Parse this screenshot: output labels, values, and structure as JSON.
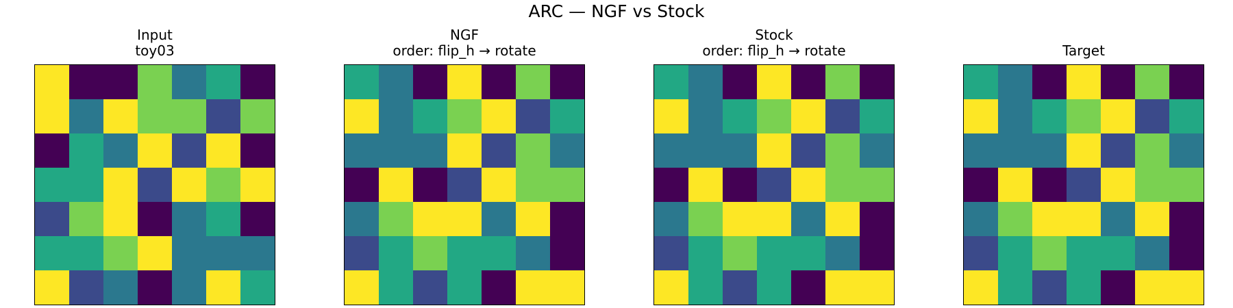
{
  "title": "ARC — NGF vs Stock",
  "colors": {
    "0": "#440154",
    "1": "#3b4a8a",
    "2": "#2b788e",
    "3": "#22a884",
    "4": "#7ad151",
    "5": "#fde725"
  },
  "chart_data": {
    "type": "heatmap",
    "color_scale": "viridis",
    "panels": [
      {
        "title": "Input",
        "subtitle": "toy03",
        "grid": [
          [
            5,
            0,
            0,
            4,
            2,
            3,
            0
          ],
          [
            5,
            2,
            5,
            4,
            4,
            1,
            4
          ],
          [
            0,
            3,
            2,
            5,
            1,
            5,
            0
          ],
          [
            3,
            3,
            5,
            1,
            5,
            4,
            5
          ],
          [
            1,
            4,
            5,
            0,
            2,
            3,
            0
          ],
          [
            3,
            3,
            4,
            5,
            2,
            2,
            2
          ],
          [
            5,
            1,
            2,
            0,
            2,
            5,
            3
          ]
        ]
      },
      {
        "title": "NGF",
        "subtitle": "order: flip_h → rotate",
        "grid": [
          [
            3,
            2,
            0,
            5,
            0,
            4,
            0
          ],
          [
            5,
            2,
            3,
            4,
            5,
            1,
            3
          ],
          [
            2,
            2,
            2,
            5,
            1,
            4,
            2
          ],
          [
            0,
            5,
            0,
            1,
            5,
            4,
            4
          ],
          [
            2,
            4,
            5,
            5,
            2,
            5,
            0
          ],
          [
            1,
            3,
            4,
            3,
            3,
            2,
            0
          ],
          [
            5,
            3,
            1,
            3,
            0,
            5,
            5
          ]
        ]
      },
      {
        "title": "Stock",
        "subtitle": "order: flip_h → rotate",
        "grid": [
          [
            3,
            2,
            0,
            5,
            0,
            4,
            0
          ],
          [
            5,
            2,
            3,
            4,
            5,
            1,
            3
          ],
          [
            2,
            2,
            2,
            5,
            1,
            4,
            2
          ],
          [
            0,
            5,
            0,
            1,
            5,
            4,
            4
          ],
          [
            2,
            4,
            5,
            5,
            2,
            5,
            0
          ],
          [
            1,
            3,
            4,
            3,
            3,
            2,
            0
          ],
          [
            5,
            3,
            1,
            3,
            0,
            5,
            5
          ]
        ]
      },
      {
        "title": "Target",
        "subtitle": "",
        "grid": [
          [
            3,
            2,
            0,
            5,
            0,
            4,
            0
          ],
          [
            5,
            2,
            3,
            4,
            5,
            1,
            3
          ],
          [
            2,
            2,
            2,
            5,
            1,
            4,
            2
          ],
          [
            0,
            5,
            0,
            1,
            5,
            4,
            4
          ],
          [
            2,
            4,
            5,
            5,
            2,
            5,
            0
          ],
          [
            1,
            3,
            4,
            3,
            3,
            2,
            0
          ],
          [
            5,
            3,
            1,
            3,
            0,
            5,
            5
          ]
        ]
      }
    ]
  }
}
